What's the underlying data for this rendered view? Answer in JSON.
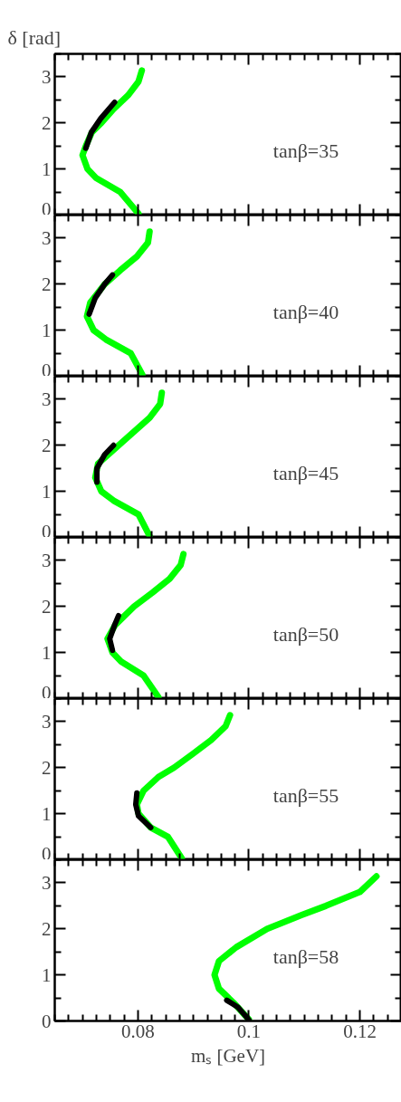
{
  "chart_data": [
    {
      "type": "line",
      "ylabel": "δ [rad]",
      "annotations": [
        "tanβ=35"
      ],
      "tick_labels": "y",
      "series": [
        {
          "color": "#00ff00",
          "x": [
            0.0801,
            0.0768,
            0.0725,
            0.0709,
            0.07,
            0.0706,
            0.0717,
            0.0734,
            0.0756,
            0.0782,
            0.0801,
            0.0807
          ],
          "values": [
            0.03,
            0.5,
            0.8,
            1.0,
            1.3,
            1.5,
            1.8,
            2.0,
            2.3,
            2.6,
            2.9,
            3.14
          ]
        },
        {
          "color": "#000000",
          "x": [
            0.0706,
            0.0716,
            0.0733,
            0.0758
          ],
          "values": [
            1.45,
            1.8,
            2.1,
            2.45
          ]
        }
      ],
      "xlim": [
        0.065,
        0.1275
      ],
      "ylim": [
        0,
        3.5
      ],
      "xticks": [
        {
          "value": 0.08,
          "label": null
        },
        {
          "value": 0.1,
          "label": null
        },
        {
          "value": 0.12,
          "label": null
        }
      ],
      "yticks": [
        0,
        1,
        2,
        3
      ]
    },
    {
      "type": "line",
      "annotations": [
        "tanβ=40"
      ],
      "tick_labels": "y",
      "series": [
        {
          "color": "#00ff00",
          "x": [
            0.0808,
            0.0787,
            0.0742,
            0.072,
            0.0708,
            0.0714,
            0.074,
            0.0768,
            0.0798,
            0.0818,
            0.0821
          ],
          "values": [
            0.03,
            0.5,
            0.8,
            1.0,
            1.3,
            1.6,
            2.0,
            2.3,
            2.6,
            2.9,
            3.14
          ]
        },
        {
          "color": "#000000",
          "x": [
            0.0712,
            0.0723,
            0.074,
            0.0754
          ],
          "values": [
            1.35,
            1.7,
            2.0,
            2.2
          ]
        }
      ],
      "xlim": [
        0.065,
        0.1275
      ],
      "ylim": [
        0,
        3.5
      ],
      "xticks": [
        {
          "value": 0.08,
          "label": null
        },
        {
          "value": 0.1,
          "label": null
        },
        {
          "value": 0.12,
          "label": null
        }
      ],
      "yticks": [
        0,
        1,
        2,
        3
      ]
    },
    {
      "type": "line",
      "annotations": [
        "tanβ=45"
      ],
      "tick_labels": "y",
      "series": [
        {
          "color": "#00ff00",
          "x": [
            0.0821,
            0.0801,
            0.0756,
            0.0734,
            0.0723,
            0.0728,
            0.0765,
            0.0793,
            0.0821,
            0.084,
            0.0843
          ],
          "values": [
            0.03,
            0.5,
            0.8,
            1.0,
            1.3,
            1.6,
            2.0,
            2.3,
            2.6,
            2.9,
            3.14
          ]
        },
        {
          "color": "#000000",
          "x": [
            0.0726,
            0.0726,
            0.074,
            0.0756
          ],
          "values": [
            1.2,
            1.5,
            1.8,
            2.0
          ]
        }
      ],
      "xlim": [
        0.065,
        0.1275
      ],
      "ylim": [
        0,
        3.5
      ],
      "xticks": [
        {
          "value": 0.08,
          "label": null
        },
        {
          "value": 0.1,
          "label": null
        },
        {
          "value": 0.12,
          "label": null
        }
      ],
      "yticks": [
        0,
        1,
        2,
        3
      ]
    },
    {
      "type": "line",
      "annotations": [
        "tanβ=50"
      ],
      "tick_labels": "y",
      "series": [
        {
          "color": "#00ff00",
          "x": [
            0.0837,
            0.081,
            0.077,
            0.0754,
            0.0745,
            0.0759,
            0.0793,
            0.0826,
            0.0857,
            0.0877,
            0.0882
          ],
          "values": [
            0.03,
            0.5,
            0.8,
            1.0,
            1.3,
            1.6,
            2.0,
            2.3,
            2.6,
            2.9,
            3.14
          ]
        },
        {
          "color": "#000000",
          "x": [
            0.0754,
            0.0749,
            0.0758,
            0.0765
          ],
          "values": [
            1.05,
            1.3,
            1.6,
            1.8
          ]
        }
      ],
      "xlim": [
        0.065,
        0.1275
      ],
      "ylim": [
        0,
        3.5
      ],
      "xticks": [
        {
          "value": 0.08,
          "label": null
        },
        {
          "value": 0.1,
          "label": null
        },
        {
          "value": 0.12,
          "label": null
        }
      ],
      "yticks": [
        0,
        1,
        2,
        3
      ]
    },
    {
      "type": "line",
      "annotations": [
        "tanβ=55"
      ],
      "tick_labels": "y",
      "series": [
        {
          "color": "#00ff00",
          "x": [
            0.0879,
            0.0854,
            0.0823,
            0.0801,
            0.0798,
            0.081,
            0.0837,
            0.0865,
            0.0899,
            0.0932,
            0.0958,
            0.0966
          ],
          "values": [
            0.03,
            0.5,
            0.7,
            1.0,
            1.2,
            1.5,
            1.8,
            2.0,
            2.3,
            2.6,
            2.9,
            3.14
          ]
        },
        {
          "color": "#000000",
          "x": [
            0.0823,
            0.0801,
            0.0796,
            0.0798
          ],
          "values": [
            0.7,
            0.95,
            1.2,
            1.45
          ]
        }
      ],
      "xlim": [
        0.065,
        0.1275
      ],
      "ylim": [
        0,
        3.5
      ],
      "xticks": [
        {
          "value": 0.08,
          "label": null
        },
        {
          "value": 0.1,
          "label": null
        },
        {
          "value": 0.12,
          "label": null
        }
      ],
      "yticks": [
        0,
        1,
        2,
        3
      ]
    },
    {
      "type": "line",
      "xlabel": "mₛ [GeV]",
      "annotations": [
        "tanβ=58"
      ],
      "series": [
        {
          "color": "#00ff00",
          "x": [
            0.1,
            0.0972,
            0.0946,
            0.0938,
            0.0946,
            0.0977,
            0.1033,
            0.1095,
            0.1139,
            0.12,
            0.123
          ],
          "values": [
            0.03,
            0.4,
            0.7,
            1.0,
            1.3,
            1.6,
            2.0,
            2.3,
            2.5,
            2.8,
            3.14
          ]
        },
        {
          "color": "#000000",
          "x": [
            0.096,
            0.098,
            0.0991,
            0.1
          ],
          "values": [
            0.45,
            0.3,
            0.15,
            0.02
          ]
        }
      ],
      "xlim": [
        0.065,
        0.1275
      ],
      "ylim": [
        0,
        3.5
      ],
      "xticks": [
        0.08,
        0.1,
        0.12
      ],
      "yticks": [
        0,
        1,
        2,
        3
      ]
    }
  ]
}
